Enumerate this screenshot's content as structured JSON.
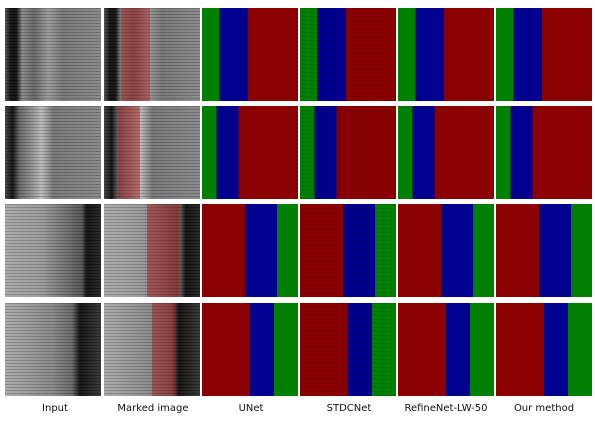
{
  "columns": [
    "Input",
    "Marked image",
    "UNet",
    "STDCNet",
    "RefineNet-LW-50",
    "Our method"
  ]
}
